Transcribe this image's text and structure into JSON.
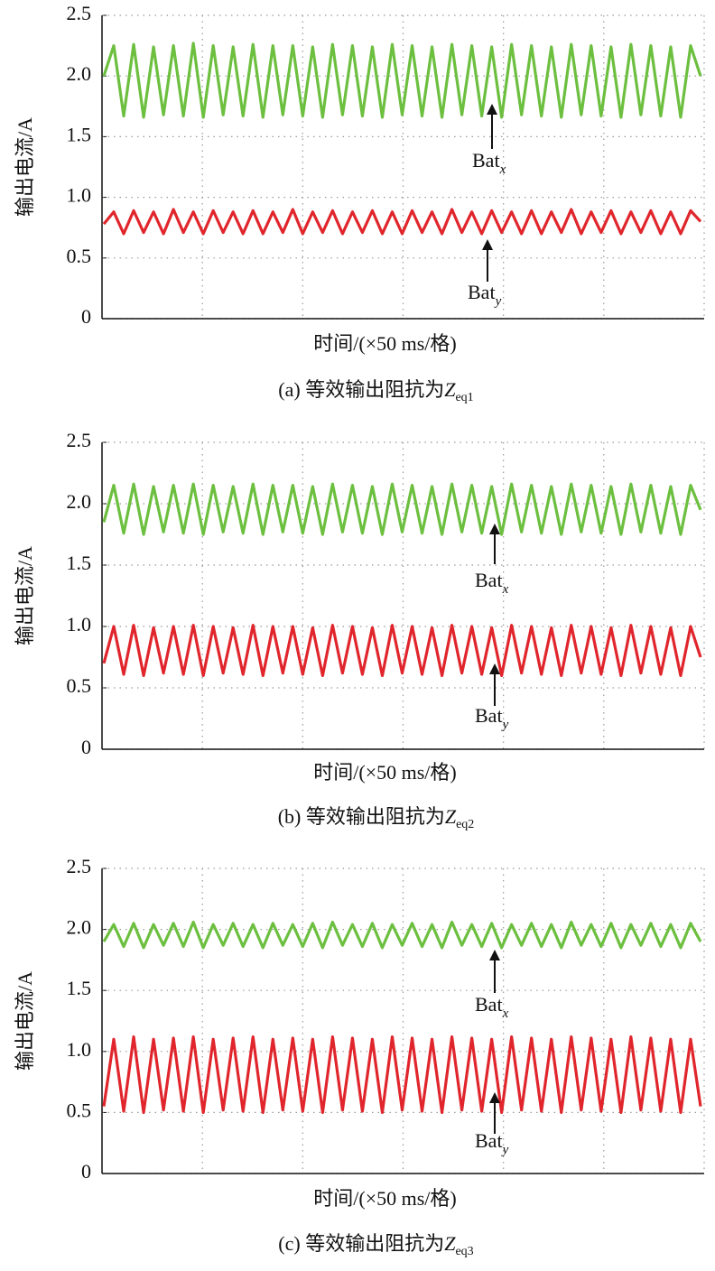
{
  "chart_data": [
    {
      "type": "line",
      "ylabel": "输出电流/A",
      "xlabel": "时间/(×50 ms/格)",
      "caption": {
        "prefix": "(a) 等效输出阻抗为",
        "symbol": "Z",
        "sub": "eq1"
      },
      "ylim": [
        0,
        2.5
      ],
      "yticks": [
        0,
        0.5,
        {
          "value": 1,
          "label": "1.0"
        },
        1.5,
        {
          "value": 2,
          "label": "2.0"
        },
        2.5
      ],
      "grid": true,
      "series": [
        {
          "name": "Batx",
          "color": "#6cbf3f",
          "values": [
            2.0,
            2.25,
            1.67,
            2.26,
            1.66,
            2.24,
            1.68,
            2.25,
            1.67,
            2.27,
            1.66,
            2.25,
            1.68,
            2.24,
            1.67,
            2.26,
            1.66,
            2.25,
            1.68,
            2.25,
            1.67,
            2.24,
            1.66,
            2.26,
            1.68,
            2.25,
            1.67,
            2.24,
            1.66,
            2.26,
            1.68,
            2.25,
            1.67,
            2.24,
            1.66,
            2.26,
            1.68,
            2.25,
            1.67,
            2.24,
            1.66,
            2.26,
            1.68,
            2.25,
            1.67,
            2.24,
            1.66,
            2.26,
            1.68,
            2.25,
            1.67,
            2.24,
            1.66,
            2.26,
            1.68,
            2.25,
            1.67,
            2.24,
            1.66,
            2.25,
            2.0
          ]
        },
        {
          "name": "Baty",
          "color": "#e0262c",
          "values": [
            0.78,
            0.88,
            0.7,
            0.89,
            0.71,
            0.88,
            0.7,
            0.9,
            0.71,
            0.88,
            0.7,
            0.89,
            0.71,
            0.88,
            0.7,
            0.89,
            0.7,
            0.88,
            0.71,
            0.9,
            0.7,
            0.88,
            0.71,
            0.89,
            0.7,
            0.88,
            0.71,
            0.89,
            0.7,
            0.88,
            0.7,
            0.89,
            0.71,
            0.88,
            0.7,
            0.9,
            0.71,
            0.88,
            0.7,
            0.89,
            0.71,
            0.88,
            0.7,
            0.89,
            0.7,
            0.88,
            0.71,
            0.9,
            0.7,
            0.88,
            0.71,
            0.89,
            0.7,
            0.88,
            0.71,
            0.89,
            0.7,
            0.88,
            0.7,
            0.89,
            0.8
          ]
        }
      ],
      "annotations": [
        {
          "text": "Bat",
          "sub": "x"
        },
        {
          "text": "Bat",
          "sub": "y"
        }
      ]
    },
    {
      "type": "line",
      "ylabel": "输出电流/A",
      "xlabel": "时间/(×50 ms/格)",
      "caption": {
        "prefix": "(b) 等效输出阻抗为",
        "symbol": "Z",
        "sub": "eq2"
      },
      "ylim": [
        0,
        2.5
      ],
      "yticks": [
        0,
        0.5,
        {
          "value": 1,
          "label": "1.0"
        },
        1.5,
        {
          "value": 2,
          "label": "2.0"
        },
        2.5
      ],
      "grid": true,
      "series": [
        {
          "name": "Batx",
          "color": "#6cbf3f",
          "values": [
            1.85,
            2.15,
            1.76,
            2.16,
            1.75,
            2.14,
            1.77,
            2.15,
            1.76,
            2.16,
            1.75,
            2.15,
            1.77,
            2.14,
            1.76,
            2.16,
            1.75,
            2.15,
            1.77,
            2.15,
            1.76,
            2.14,
            1.75,
            2.16,
            1.77,
            2.15,
            1.76,
            2.14,
            1.75,
            2.16,
            1.77,
            2.15,
            1.76,
            2.14,
            1.75,
            2.16,
            1.77,
            2.15,
            1.76,
            2.14,
            1.75,
            2.16,
            1.77,
            2.15,
            1.76,
            2.14,
            1.75,
            2.16,
            1.77,
            2.15,
            1.76,
            2.14,
            1.75,
            2.16,
            1.77,
            2.15,
            1.76,
            2.14,
            1.75,
            2.15,
            1.95
          ]
        },
        {
          "name": "Baty",
          "color": "#e0262c",
          "values": [
            0.7,
            1.0,
            0.61,
            1.01,
            0.6,
            0.99,
            0.62,
            1.0,
            0.61,
            1.01,
            0.6,
            1.0,
            0.62,
            0.99,
            0.61,
            1.01,
            0.6,
            1.0,
            0.62,
            1.0,
            0.61,
            0.99,
            0.6,
            1.01,
            0.62,
            1.0,
            0.61,
            0.99,
            0.6,
            1.01,
            0.62,
            1.0,
            0.61,
            0.99,
            0.6,
            1.01,
            0.62,
            1.0,
            0.61,
            0.99,
            0.6,
            1.01,
            0.62,
            1.0,
            0.61,
            0.99,
            0.6,
            1.01,
            0.62,
            1.0,
            0.61,
            0.99,
            0.6,
            1.01,
            0.62,
            1.0,
            0.61,
            0.99,
            0.6,
            1.0,
            0.75
          ]
        }
      ],
      "annotations": [
        {
          "text": "Bat",
          "sub": "x"
        },
        {
          "text": "Bat",
          "sub": "y"
        }
      ]
    },
    {
      "type": "line",
      "ylabel": "输出电流/A",
      "xlabel": "时间/(×50 ms/格)",
      "caption": {
        "prefix": "(c) 等效输出阻抗为",
        "symbol": "Z",
        "sub": "eq3"
      },
      "ylim": [
        0,
        2.5
      ],
      "yticks": [
        0,
        0.5,
        {
          "value": 1,
          "label": "1.0"
        },
        1.5,
        {
          "value": 2,
          "label": "2.0"
        },
        2.5
      ],
      "grid": true,
      "series": [
        {
          "name": "Batx",
          "color": "#6cbf3f",
          "values": [
            1.9,
            2.04,
            1.86,
            2.05,
            1.85,
            2.04,
            1.87,
            2.05,
            1.86,
            2.06,
            1.85,
            2.04,
            1.87,
            2.05,
            1.86,
            2.04,
            1.85,
            2.05,
            1.87,
            2.04,
            1.86,
            2.05,
            1.85,
            2.06,
            1.87,
            2.04,
            1.86,
            2.05,
            1.85,
            2.04,
            1.87,
            2.05,
            1.86,
            2.04,
            1.85,
            2.06,
            1.87,
            2.04,
            1.86,
            2.05,
            1.85,
            2.04,
            1.87,
            2.05,
            1.86,
            2.04,
            1.85,
            2.06,
            1.87,
            2.04,
            1.86,
            2.05,
            1.85,
            2.04,
            1.87,
            2.05,
            1.86,
            2.04,
            1.85,
            2.05,
            1.9
          ]
        },
        {
          "name": "Baty",
          "color": "#e0262c",
          "values": [
            0.55,
            1.1,
            0.51,
            1.12,
            0.5,
            1.1,
            0.52,
            1.11,
            0.51,
            1.12,
            0.5,
            1.1,
            0.52,
            1.11,
            0.51,
            1.12,
            0.5,
            1.1,
            0.52,
            1.11,
            0.51,
            1.1,
            0.5,
            1.12,
            0.52,
            1.11,
            0.51,
            1.1,
            0.5,
            1.12,
            0.52,
            1.11,
            0.51,
            1.1,
            0.5,
            1.12,
            0.52,
            1.11,
            0.51,
            1.1,
            0.5,
            1.12,
            0.52,
            1.11,
            0.51,
            1.1,
            0.5,
            1.12,
            0.52,
            1.11,
            0.51,
            1.1,
            0.5,
            1.12,
            0.52,
            1.11,
            0.51,
            1.1,
            0.5,
            1.1,
            0.55
          ]
        }
      ],
      "annotations": [
        {
          "text": "Bat",
          "sub": "x"
        },
        {
          "text": "Bat",
          "sub": "y"
        }
      ]
    }
  ]
}
